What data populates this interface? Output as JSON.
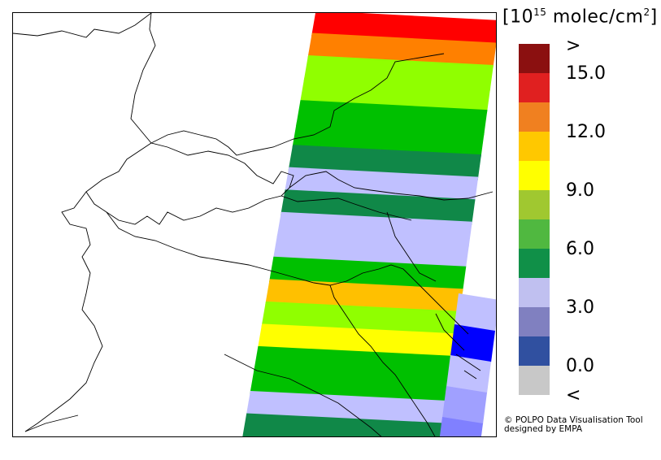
{
  "unit": {
    "open": "[10",
    "exponent": "15",
    "rest": " molec/cm",
    "power": "2",
    "close": "]"
  },
  "legend": {
    "colors": [
      "#8b1010",
      "#e02020",
      "#f08020",
      "#ffc800",
      "#ffff00",
      "#a0c830",
      "#50b840",
      "#109048",
      "#c0c0f0",
      "#8080c0",
      "#3050a0",
      "#c8c8c8"
    ],
    "labels": [
      ">",
      "15.0",
      "12.0",
      "9.0",
      "6.0",
      "3.0",
      "0.0",
      "<"
    ]
  },
  "credit": {
    "line1": "© POLPO Data Visualisation Tool",
    "line2": "designed by EMPA"
  },
  "swath_bands": [
    {
      "color": "#ff0000"
    },
    {
      "color": "#ff8000"
    },
    {
      "color": "#90ff00"
    },
    {
      "color": "#90ff00"
    },
    {
      "color": "#00c000"
    },
    {
      "color": "#00c000"
    },
    {
      "color": "#108848"
    },
    {
      "color": "#c0c0ff"
    },
    {
      "color": "#108848"
    },
    {
      "color": "#c0c0ff"
    },
    {
      "color": "#c0c0ff"
    },
    {
      "color": "#00c000"
    },
    {
      "color": "#ffc000"
    },
    {
      "color": "#90ff00"
    },
    {
      "color": "#ffff00"
    },
    {
      "color": "#00c000"
    },
    {
      "color": "#00c000"
    },
    {
      "color": "#c0c0ff"
    },
    {
      "color": "#108848"
    }
  ],
  "right_patch_colors": [
    "#c0c0ff",
    "#0000ff",
    "#c0c0ff",
    "#a0a0ff",
    "#8080ff"
  ]
}
